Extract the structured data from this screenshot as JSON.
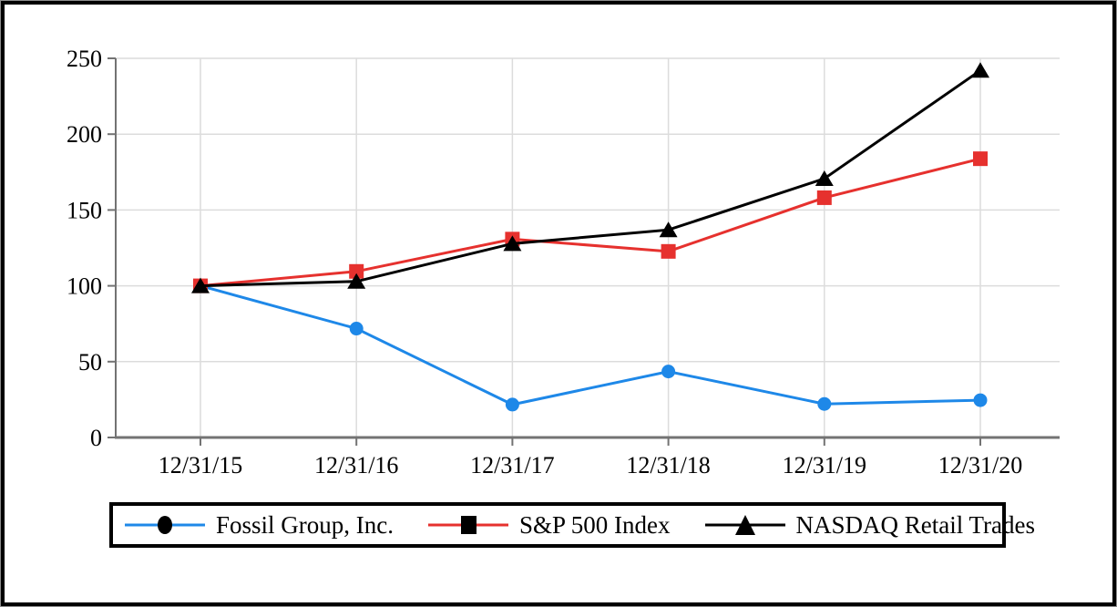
{
  "chart_data": {
    "type": "line",
    "title": "",
    "xlabel": "",
    "ylabel": "",
    "x_categories": [
      "12/31/15",
      "12/31/16",
      "12/31/17",
      "12/31/18",
      "12/31/19",
      "12/31/20"
    ],
    "series": [
      {
        "name": "Fossil Group, Inc.",
        "color": "#1e88e8",
        "marker": "circle",
        "values": [
          100,
          71.8,
          21.7,
          43.5,
          22.1,
          24.6
        ]
      },
      {
        "name": "S&P 500 Index",
        "color": "#e6312e",
        "marker": "square",
        "values": [
          100,
          109.5,
          130.8,
          122.7,
          158.1,
          183.8
        ]
      },
      {
        "name": "NASDAQ Retail Trades",
        "color": "#000000",
        "marker": "triangle",
        "values": [
          100,
          102.9,
          127.8,
          136.9,
          170.7,
          242
        ]
      }
    ],
    "ylim": [
      0,
      250
    ],
    "yticks": [
      0,
      50,
      100,
      150,
      200,
      250
    ],
    "ytick_labels": [
      "0",
      "50",
      "100",
      "150",
      "200",
      "250"
    ],
    "grid": true,
    "legend_position": "bottom",
    "legend_marker_color": "#000000",
    "axis_color": "#737373",
    "gridline_color": "#dcdcdc",
    "background_color": "#ffffff"
  }
}
